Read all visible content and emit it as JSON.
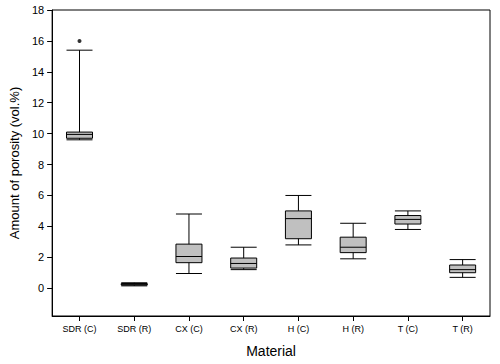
{
  "chart_data": {
    "type": "boxplot",
    "x_label": "Material",
    "y_label": "Amount of porosity (vol.%)",
    "categories": [
      "SDR (C)",
      "SDR (R)",
      "CX (C)",
      "CX (R)",
      "H (C)",
      "H (R)",
      "T (C)",
      "T (R)"
    ],
    "values": [
      [
        9.6,
        9.7,
        9.95,
        10.1,
        15.4
      ],
      [
        0.15,
        0.2,
        0.25,
        0.3,
        0.35
      ],
      [
        0.95,
        1.65,
        2.05,
        2.85,
        4.8
      ],
      [
        1.2,
        1.3,
        1.6,
        1.95,
        2.65
      ],
      [
        2.8,
        3.2,
        4.5,
        5.0,
        6.0
      ],
      [
        1.9,
        2.3,
        2.65,
        3.3,
        4.2
      ],
      [
        3.8,
        4.15,
        4.45,
        4.7,
        5.0
      ],
      [
        0.7,
        1.0,
        1.2,
        1.5,
        1.85
      ]
    ],
    "outliers": [
      {
        "category": "SDR (C)",
        "value": 16.0
      }
    ],
    "color": "#c0c0c0",
    "ylim": [
      -1.8,
      18
    ],
    "yticks": [
      0,
      2,
      4,
      6,
      8,
      10,
      12,
      14,
      16,
      18
    ],
    "grid": false
  }
}
